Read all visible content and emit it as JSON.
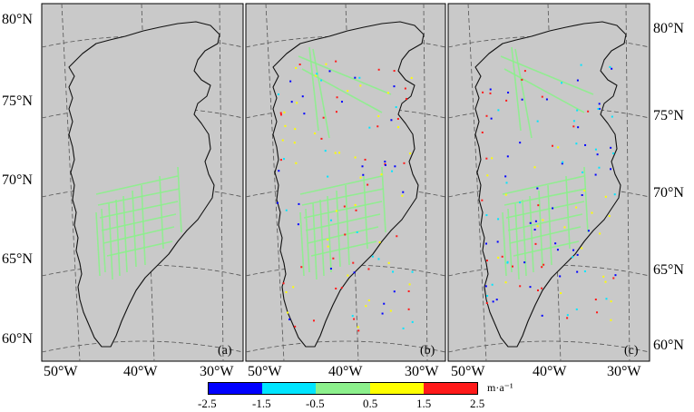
{
  "colors": {
    "background": "#ffffff",
    "panel_fill": "#c9c9c9",
    "graticule": "#555555",
    "coast": "#111111",
    "track": "#8cf08c"
  },
  "map": {
    "lat_labels": [
      "80°N",
      "75°N",
      "70°N",
      "65°N",
      "60°N"
    ],
    "lon_labels": [
      "50°W",
      "40°W",
      "30°W"
    ],
    "panels": [
      {
        "label": "(a)"
      },
      {
        "label": "(b)"
      },
      {
        "label": "(c)"
      }
    ]
  },
  "colorbar": {
    "ticks": [
      "-2.5",
      "-1.5",
      "-0.5",
      "0.5",
      "1.5",
      "2.5"
    ],
    "colors": [
      "#0000ff",
      "#00e5ff",
      "#8cf08c",
      "#ffff00",
      "#ff1a1a"
    ],
    "unit": "m·a⁻¹"
  }
}
